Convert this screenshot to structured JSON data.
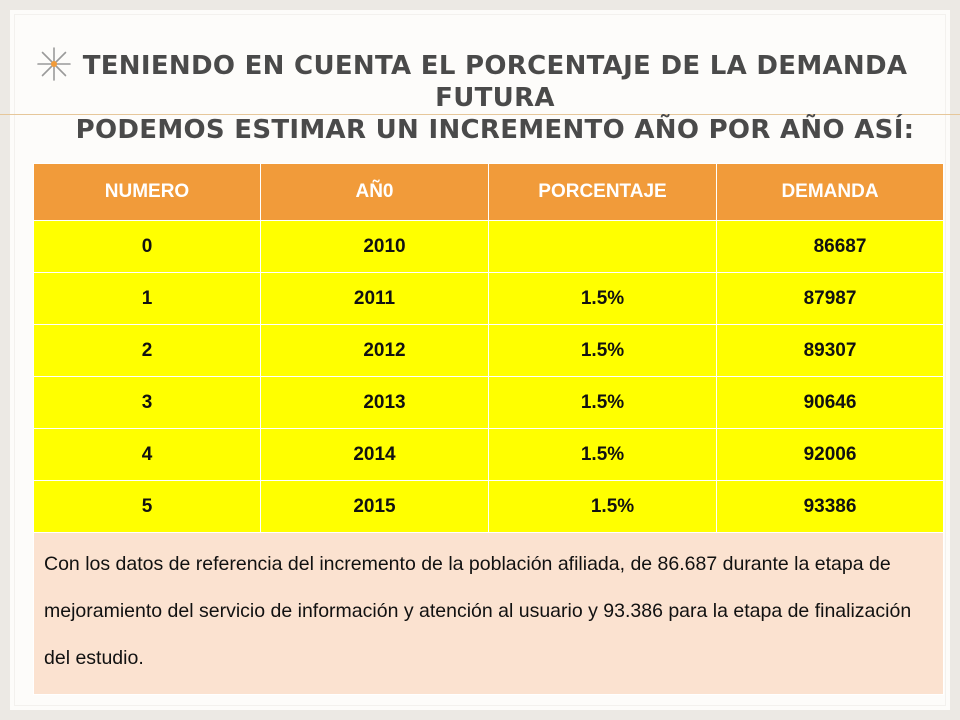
{
  "slide": {
    "title_line1": "Teniendo en cuenta el porcentaje de la demanda futura",
    "title_line2": "podemos estimar un incremento año por año así:"
  },
  "table": {
    "headers": [
      "NUMERO",
      "AÑ0",
      "PORCENTAJE",
      "DEMANDA"
    ],
    "rows": [
      [
        "0",
        "2010",
        "",
        "86687"
      ],
      [
        "1",
        "2011",
        "1.5%",
        "87987"
      ],
      [
        "2",
        "2012",
        "1.5%",
        "89307"
      ],
      [
        "3",
        "2013",
        "1.5%",
        "90646"
      ],
      [
        "4",
        "2014",
        "1.5%",
        "92006"
      ],
      [
        "5",
        "2015",
        "1.5%",
        "93386"
      ]
    ],
    "note": "Con los datos de referencia del incremento de la población afiliada,  de 86.687 durante  la etapa de mejoramiento del servicio  de información y atención al usuario  y 93.386 para la etapa de finalización del estudio."
  },
  "decor": {
    "bullet_icon": "asterisk-star-icon",
    "header_color": "#f19b3a",
    "row_color": "#ffff00",
    "note_color": "#fbe2d0"
  }
}
